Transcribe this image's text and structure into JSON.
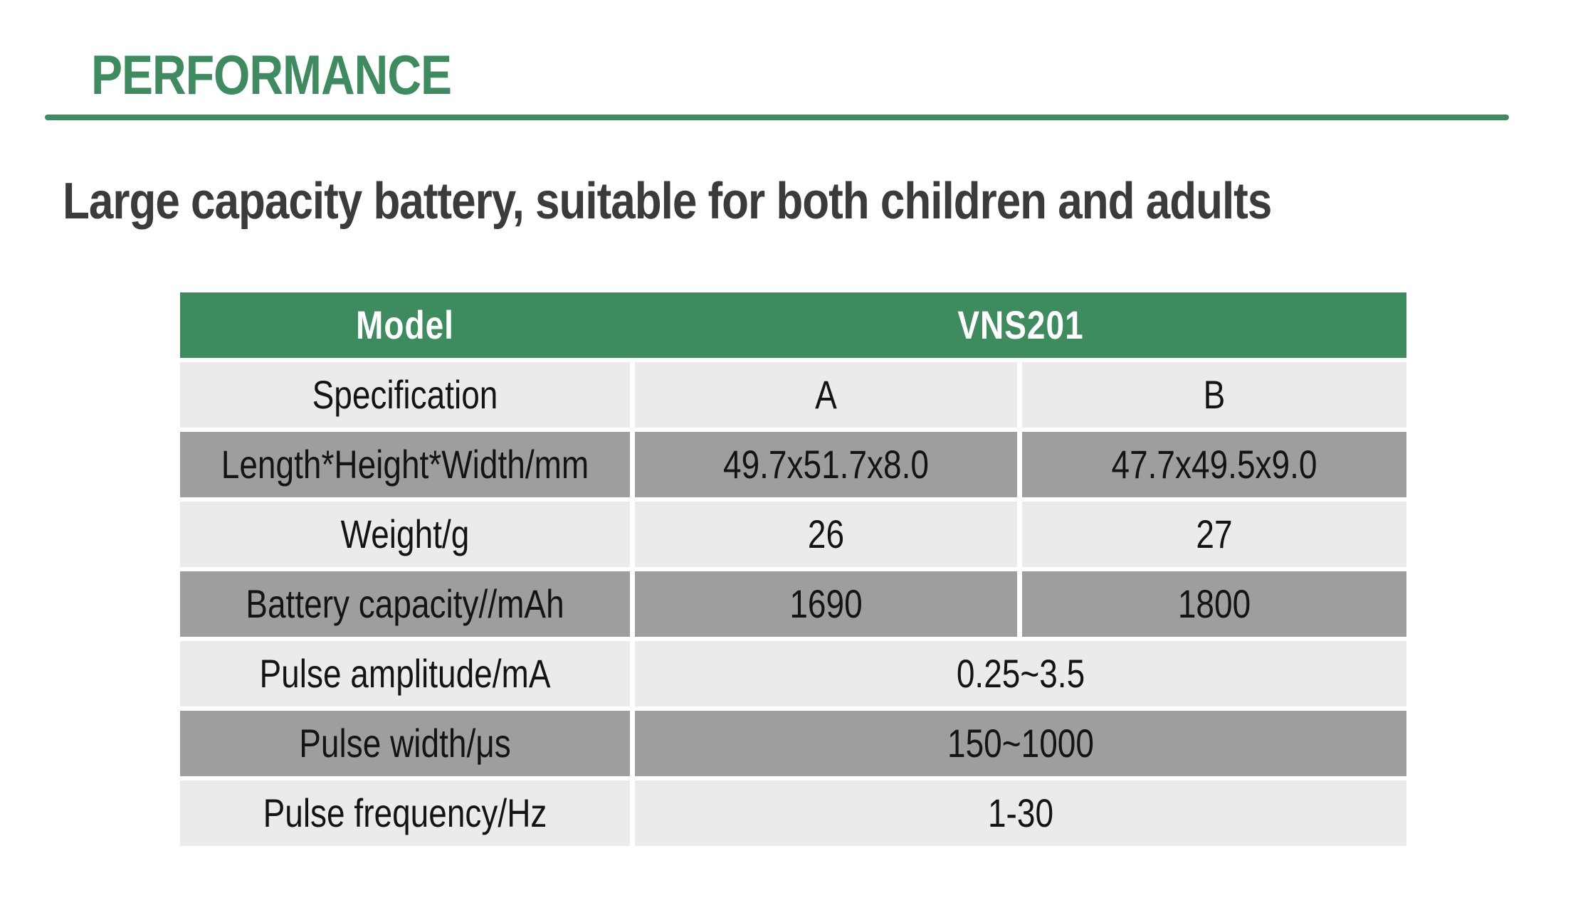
{
  "page": {
    "section_title": "PERFORMANCE",
    "headline": "Large capacity battery, suitable for both children and adults"
  },
  "table": {
    "header": {
      "model_label": "Model",
      "model_value": "VNS201"
    },
    "rows": [
      {
        "label": "Specification",
        "a": "A",
        "b": "B",
        "merged": false,
        "shade": "light"
      },
      {
        "label": "Length*Height*Width/mm",
        "a": "49.7x51.7x8.0",
        "b": "47.7x49.5x9.0",
        "merged": false,
        "shade": "dark"
      },
      {
        "label": "Weight/g",
        "a": "26",
        "b": "27",
        "merged": false,
        "shade": "light"
      },
      {
        "label": "Battery capacity//mAh",
        "a": "1690",
        "b": "1800",
        "merged": false,
        "shade": "dark"
      },
      {
        "label": "Pulse amplitude/mA",
        "value": "0.25~3.5",
        "merged": true,
        "shade": "light"
      },
      {
        "label": "Pulse width/μs",
        "value": "150~1000",
        "merged": true,
        "shade": "dark"
      },
      {
        "label": "Pulse frequency/Hz",
        "value": "1-30",
        "merged": true,
        "shade": "light"
      }
    ],
    "colors": {
      "accent_green": "#3d8b5f",
      "row_light": "#ECEBE9",
      "row_dark": "#9E9E9E",
      "header_text": "#ffffff"
    }
  }
}
